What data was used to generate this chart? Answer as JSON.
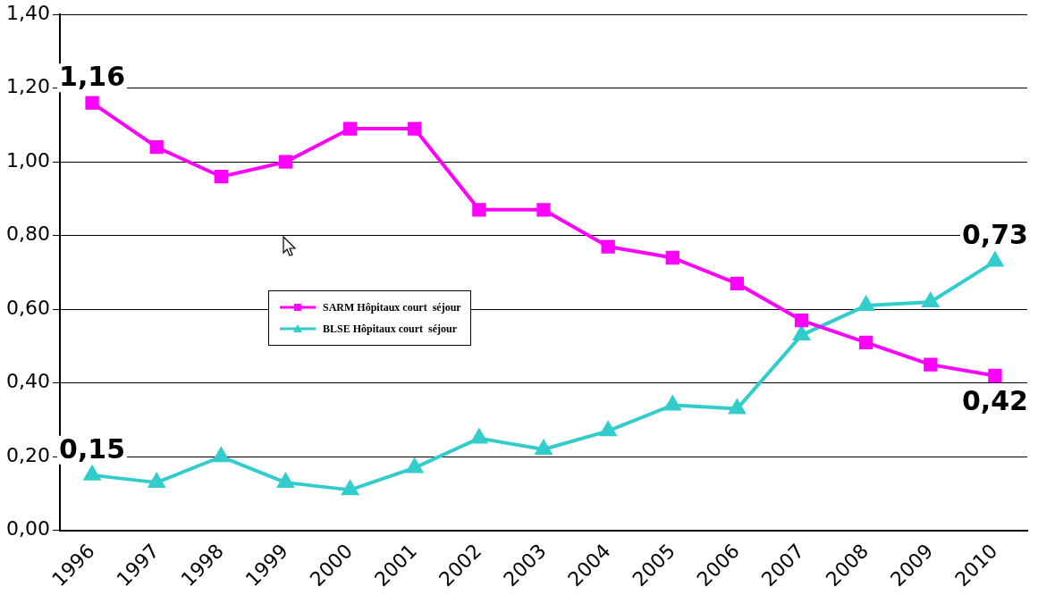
{
  "chart_data": {
    "type": "line",
    "categories": [
      "1996",
      "1997",
      "1998",
      "1999",
      "2000",
      "2001",
      "2002",
      "2003",
      "2004",
      "2005",
      "2006",
      "2007",
      "2008",
      "2009",
      "2010"
    ],
    "series": [
      {
        "name": "SARM Hôpitaux court  séjour",
        "color": "#ff00ff",
        "marker": "square",
        "values": [
          1.16,
          1.04,
          0.96,
          1.0,
          1.09,
          1.09,
          0.87,
          0.87,
          0.77,
          0.74,
          0.67,
          0.57,
          0.51,
          0.45,
          0.42
        ]
      },
      {
        "name": "BLSE Hôpitaux court  séjour",
        "color": "#33cccc",
        "marker": "triangle",
        "values": [
          0.15,
          0.13,
          0.2,
          0.13,
          0.11,
          0.17,
          0.25,
          0.22,
          0.27,
          0.34,
          0.33,
          0.53,
          0.61,
          0.62,
          0.73
        ]
      }
    ],
    "ylim": [
      0,
      1.4
    ],
    "yticks": [
      {
        "value": 0,
        "label": "0,00"
      },
      {
        "value": 0.2,
        "label": "0,20"
      },
      {
        "value": 0.4,
        "label": "0,40"
      },
      {
        "value": 0.6,
        "label": "0,60"
      },
      {
        "value": 0.8,
        "label": "0,80"
      },
      {
        "value": 1.0,
        "label": "1,00"
      },
      {
        "value": 1.2,
        "label": "1,20"
      },
      {
        "value": 1.4,
        "label": "1,40"
      }
    ],
    "grid": "y",
    "legend": "center left",
    "line_style": "solid",
    "annotations": [
      {
        "text": "1,16",
        "x": "1996",
        "y": 1.16
      },
      {
        "text": "0,15",
        "x": "1996",
        "y": 0.15
      },
      {
        "text": "0,73",
        "x": "2010",
        "y": 0.73
      },
      {
        "text": "0,42",
        "x": "2010",
        "y": 0.42
      }
    ]
  }
}
